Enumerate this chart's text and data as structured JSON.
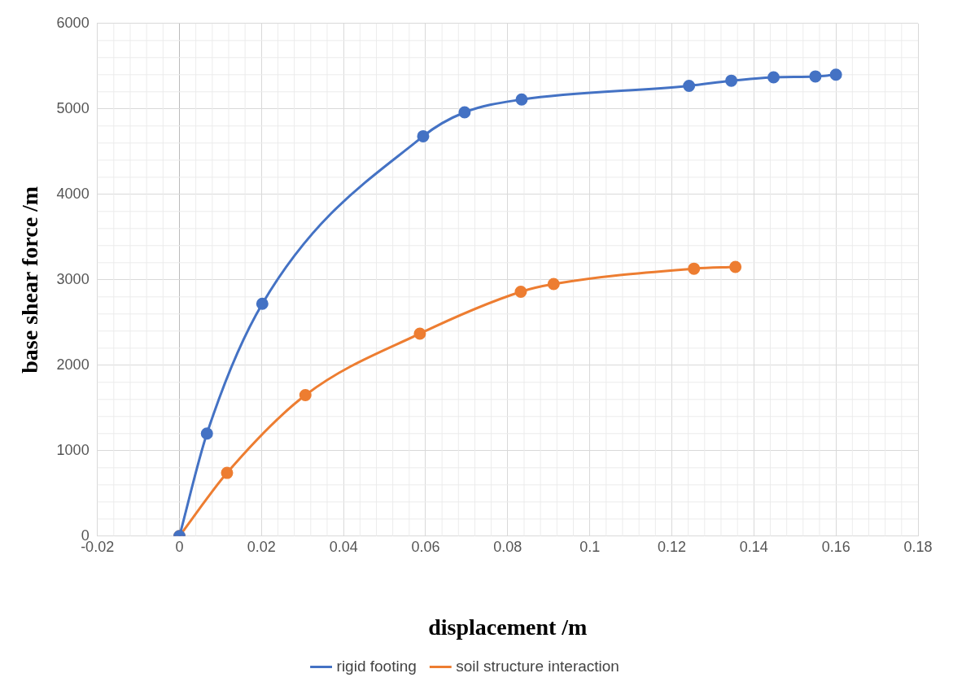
{
  "chart_data": {
    "type": "line",
    "xlabel": "displacement /m",
    "ylabel": "base shear force /m",
    "xlim": [
      -0.02,
      0.18
    ],
    "xticks": [
      -0.02,
      0,
      0.02,
      0.04,
      0.06,
      0.08,
      0.1,
      0.12,
      0.14,
      0.16,
      0.18
    ],
    "ylim": [
      0,
      6000
    ],
    "yticks": [
      0,
      1000,
      2000,
      3000,
      4000,
      5000,
      6000
    ],
    "grid": true,
    "legend": "bottom",
    "marker": "circle",
    "line_style": "solid",
    "series": [
      {
        "name": "rigid footing",
        "color": "#4472c4",
        "x": [
          0,
          0.0067,
          0.0202,
          0.0594,
          0.0695,
          0.0834,
          0.1242,
          0.1345,
          0.1448,
          0.155,
          0.16
        ],
        "values": [
          0,
          1200,
          2720,
          4680,
          4960,
          5110,
          5270,
          5330,
          5370,
          5380,
          5400
        ]
      },
      {
        "name": "soil structure interaction",
        "color": "#ed7d31",
        "x": [
          0,
          0.0116,
          0.0307,
          0.0586,
          0.0832,
          0.0912,
          0.1254,
          0.1355
        ],
        "values": [
          0,
          740,
          1650,
          2370,
          2860,
          2950,
          3130,
          3150
        ]
      }
    ]
  }
}
